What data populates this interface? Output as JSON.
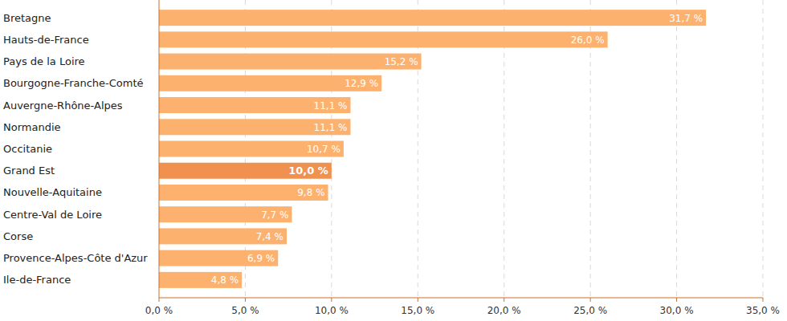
{
  "chart_data": {
    "type": "bar",
    "orientation": "horizontal",
    "categories": [
      "Bretagne",
      "Hauts-de-France",
      "Pays de la Loire",
      "Bourgogne-Franche-Comté",
      "Auvergne-Rhône-Alpes",
      "Normandie",
      "Occitanie",
      "Grand Est",
      "Nouvelle-Aquitaine",
      "Centre-Val de Loire",
      "Corse",
      "Provence-Alpes-Côte d'Azur",
      "Ile-de-France"
    ],
    "values": [
      31.7,
      26.0,
      15.2,
      12.9,
      11.1,
      11.1,
      10.7,
      10.0,
      9.8,
      7.7,
      7.4,
      6.9,
      4.8
    ],
    "value_labels": [
      "31,7 %",
      "26,0 %",
      "15,2 %",
      "12,9 %",
      "11,1 %",
      "11,1 %",
      "10,7 %",
      "10,0 %",
      "9,8 %",
      "7,7 %",
      "7,4 %",
      "6,9 %",
      "4,8 %"
    ],
    "colors": [
      "#fdb16e",
      "#fdb16e",
      "#fdb16e",
      "#fdb16e",
      "#fdb16e",
      "#fdb16e",
      "#fdb16e",
      "#f09150",
      "#fdb16e",
      "#fdb16e",
      "#fdb16e",
      "#fdb16e",
      "#fdb16e"
    ],
    "xlim": [
      0,
      35
    ],
    "xticks": [
      {
        "value": 0,
        "label": "0,0 %"
      },
      {
        "value": 5,
        "label": "5,0 %"
      },
      {
        "value": 10,
        "label": "10,0 %"
      },
      {
        "value": 15,
        "label": "15,0 %"
      },
      {
        "value": 20,
        "label": "20,0 %"
      },
      {
        "value": 25,
        "label": "25,0 %"
      },
      {
        "value": 30,
        "label": "30,0 %"
      },
      {
        "value": 35,
        "label": "35,0 %"
      }
    ],
    "grid": true,
    "data_labels": true
  }
}
